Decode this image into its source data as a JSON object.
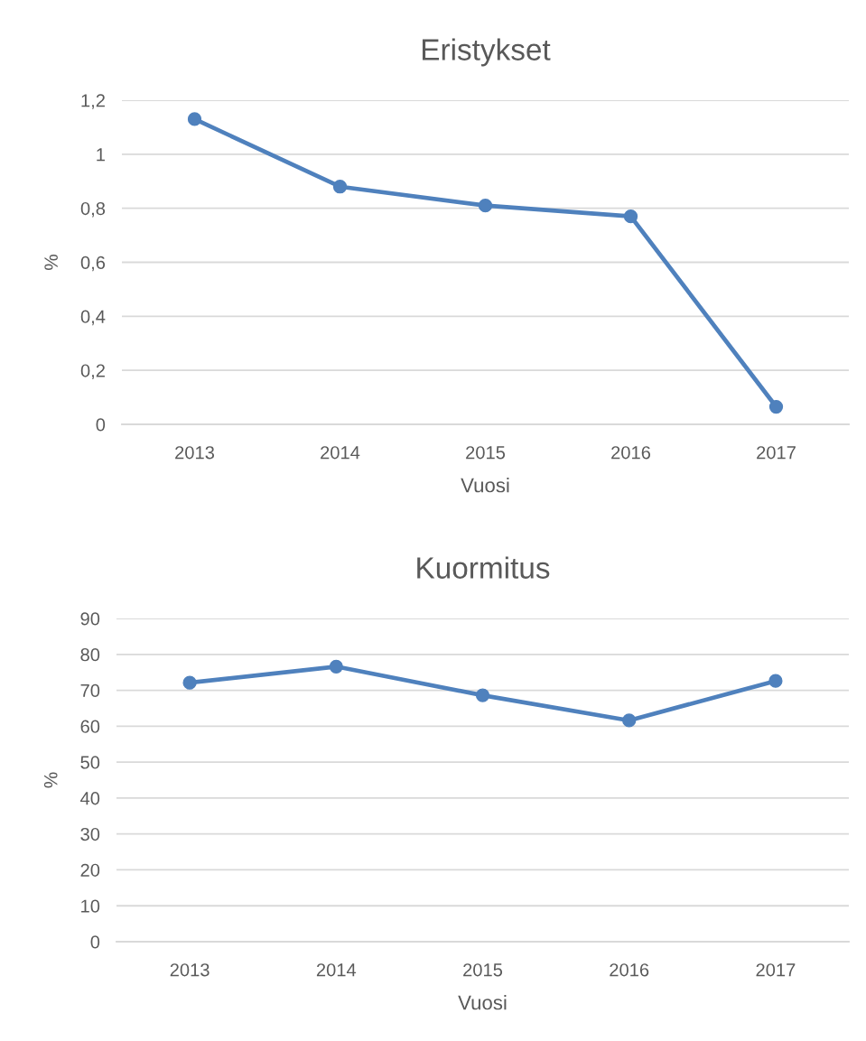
{
  "chart_data": [
    {
      "type": "line",
      "title": "Eristykset",
      "xlabel": "Vuosi",
      "ylabel": "%",
      "categories": [
        "2013",
        "2014",
        "2015",
        "2016",
        "2017"
      ],
      "series": [
        {
          "color": "#4f81bd",
          "values": [
            1.13,
            0.88,
            0.81,
            0.77,
            0.065
          ]
        }
      ],
      "ylim": [
        0,
        1.2
      ],
      "yticks": [
        0,
        {
          "value": 0.2,
          "label": "0,2"
        },
        {
          "value": 0.4,
          "label": "0,4"
        },
        {
          "value": 0.6,
          "label": "0,6"
        },
        {
          "value": 0.8,
          "label": "0,8"
        },
        1,
        {
          "value": 1.2,
          "label": "1,2"
        }
      ],
      "grid": "y",
      "marker": "circle",
      "line_style": "solid"
    },
    {
      "type": "line",
      "title": "Kuormitus",
      "xlabel": "Vuosi",
      "ylabel": "%",
      "categories": [
        "2013",
        "2014",
        "2015",
        "2016",
        "2017"
      ],
      "series": [
        {
          "color": "#4f81bd",
          "values": [
            72.1,
            76.6,
            68.6,
            61.6,
            72.6
          ]
        }
      ],
      "ylim": [
        0,
        90
      ],
      "yticks": [
        0,
        10,
        20,
        30,
        40,
        50,
        60,
        70,
        80,
        90
      ],
      "grid": "y",
      "marker": "circle",
      "line_style": "solid"
    }
  ]
}
